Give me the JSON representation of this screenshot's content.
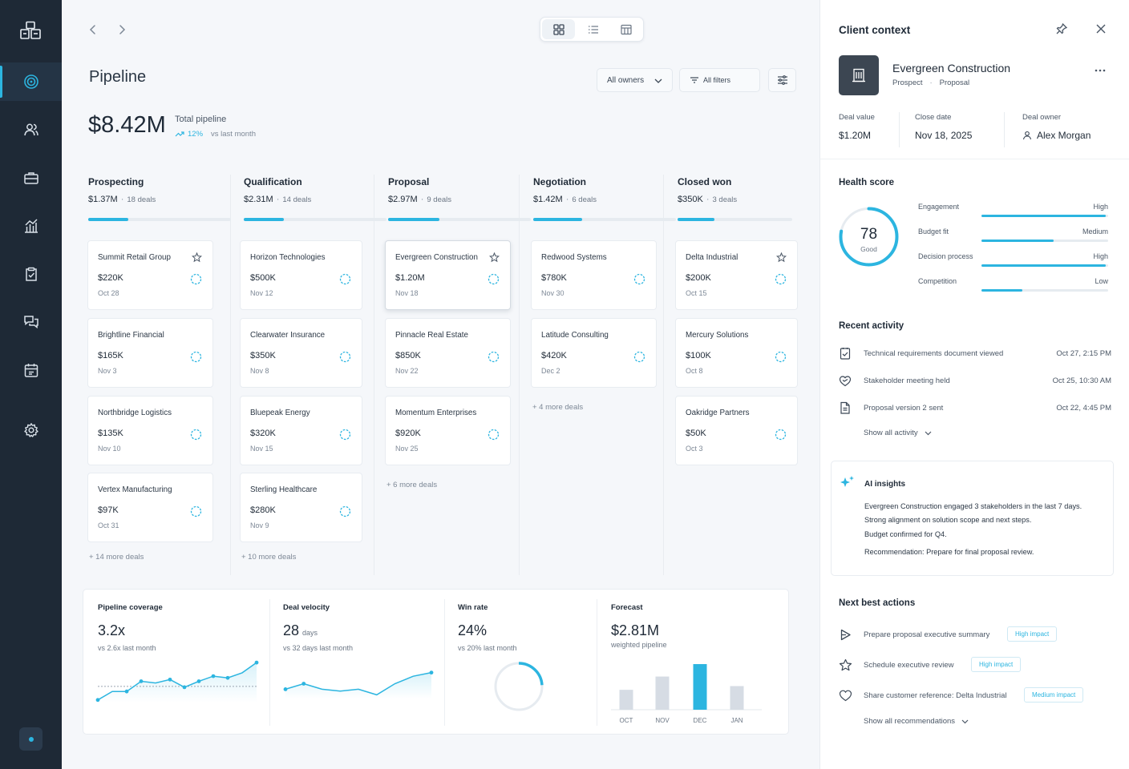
{
  "nav": {
    "items": [
      {
        "name": "sidebar-item-pipeline",
        "icon": "target-icon",
        "active": true
      },
      {
        "name": "sidebar-item-contacts",
        "icon": "users-icon"
      },
      {
        "name": "sidebar-item-deals",
        "icon": "briefcase-icon"
      },
      {
        "name": "sidebar-item-reports",
        "icon": "chart-icon"
      },
      {
        "name": "sidebar-item-tasks",
        "icon": "clipboard-check-icon"
      },
      {
        "name": "sidebar-item-messages",
        "icon": "chat-icon"
      },
      {
        "name": "sidebar-item-calendar",
        "icon": "calendar-icon"
      },
      {
        "name": "sidebar-item-settings",
        "icon": "gear-icon"
      }
    ]
  },
  "page": {
    "title": "Pipeline",
    "owners_filter": "All owners",
    "all_filters": "All filters",
    "total_value": "$8.42M",
    "total_label": "Total pipeline",
    "total_change": "12%",
    "total_change_note": "vs last month",
    "accent": "#2cb5e0"
  },
  "stages": [
    {
      "name": "Prospecting",
      "amount": "$1.37M",
      "count": "18 deals",
      "progress": 0.28,
      "deals": [
        {
          "name": "Summit Retail Group",
          "value": "$220K",
          "date": "Oct 28",
          "starred": true
        },
        {
          "name": "Brightline Financial",
          "value": "$165K",
          "date": "Nov 3"
        },
        {
          "name": "Northbridge Logistics",
          "value": "$135K",
          "date": "Nov 10"
        },
        {
          "name": "Vertex Manufacturing",
          "value": "$97K",
          "date": "Oct 31"
        }
      ],
      "more": "+  14 more deals"
    },
    {
      "name": "Qualification",
      "amount": "$2.31M",
      "count": "14 deals",
      "progress": 0.28,
      "deals": [
        {
          "name": "Horizon Technologies",
          "value": "$500K",
          "date": "Nov 12"
        },
        {
          "name": "Clearwater Insurance",
          "value": "$350K",
          "date": "Nov 8"
        },
        {
          "name": "Bluepeak Energy",
          "value": "$320K",
          "date": "Nov 15"
        },
        {
          "name": "Sterling Healthcare",
          "value": "$280K",
          "date": "Nov 9"
        }
      ],
      "more": "+  10 more deals"
    },
    {
      "name": "Proposal",
      "amount": "$2.97M",
      "count": "9 deals",
      "progress": 0.36,
      "deals": [
        {
          "name": "Evergreen Construction",
          "value": "$1.20M",
          "date": "Nov 18",
          "starred": true,
          "selected": true
        },
        {
          "name": "Pinnacle Real Estate",
          "value": "$850K",
          "date": "Nov 22"
        },
        {
          "name": "Momentum Enterprises",
          "value": "$920K",
          "date": "Nov 25"
        }
      ],
      "more": "+  6 more deals"
    },
    {
      "name": "Negotiation",
      "amount": "$1.42M",
      "count": "6 deals",
      "progress": 0.34,
      "deals": [
        {
          "name": "Redwood Systems",
          "value": "$780K",
          "date": "Nov 30"
        },
        {
          "name": "Latitude Consulting",
          "value": "$420K",
          "date": "Dec 2"
        }
      ],
      "more": "+  4 more deals"
    },
    {
      "name": "Closed won",
      "amount": "$350K",
      "count": "3 deals",
      "progress": 0.32,
      "deals": [
        {
          "name": "Delta Industrial",
          "value": "$200K",
          "date": "Oct 15",
          "starred": true
        },
        {
          "name": "Mercury Solutions",
          "value": "$100K",
          "date": "Oct 8"
        },
        {
          "name": "Oakridge Partners",
          "value": "$50K",
          "date": "Oct 3"
        }
      ],
      "more": ""
    }
  ],
  "metrics": {
    "coverage": {
      "title": "Pipeline coverage",
      "value": "3.2x",
      "sub": "vs 2.6x last month",
      "chart_data": {
        "type": "line",
        "values": [
          1.0,
          2.0,
          2.0,
          3.2,
          3.0,
          3.4,
          2.5,
          3.2,
          3.8,
          3.6,
          4.2,
          5.4
        ],
        "baseline": 2.6
      }
    },
    "velocity": {
      "title": "Deal velocity",
      "value": "28",
      "unit": "days",
      "sub": "vs 32 days last month",
      "chart_data": {
        "type": "area",
        "values": [
          3.0,
          3.6,
          3.0,
          2.8,
          3.0,
          2.4,
          3.6,
          4.4,
          4.8
        ]
      }
    },
    "winrate": {
      "title": "Win rate",
      "value": "24%",
      "sub": "vs 20% last month",
      "chart_data": {
        "type": "pie",
        "value": 0.24
      }
    },
    "forecast": {
      "title": "Forecast",
      "value": "$2.81M",
      "sub": "weighted pipeline",
      "chart_data": {
        "type": "bar",
        "categories": [
          "OCT",
          "NOV",
          "DEC",
          "JAN"
        ],
        "values": [
          0.48,
          0.8,
          1.1,
          0.57
        ],
        "highlight": 2
      }
    }
  },
  "panel": {
    "title": "Client context",
    "client_name": "Evergreen Construction",
    "client_type": "Prospect",
    "client_stage": "Proposal",
    "deal_value_label": "Deal value",
    "deal_value": "$1.20M",
    "close_date_label": "Close date",
    "close_date": "Nov 18, 2025",
    "owner_label": "Deal owner",
    "owner": "Alex Morgan",
    "health": {
      "title": "Health score",
      "score": "78",
      "score_value": 0.78,
      "rating": "Good",
      "metrics": [
        {
          "label": "Engagement",
          "level": "High",
          "value": 0.98
        },
        {
          "label": "Budget fit",
          "level": "Medium",
          "value": 0.57
        },
        {
          "label": "Decision process",
          "level": "High",
          "value": 0.98
        },
        {
          "label": "Competition",
          "level": "Low",
          "value": 0.32
        }
      ]
    },
    "activity": {
      "title": "Recent activity",
      "items": [
        {
          "text": "Technical requirements document viewed",
          "time": "Oct 27, 2:15 PM",
          "icon": "document-check-icon"
        },
        {
          "text": "Stakeholder meeting held",
          "time": "Oct 25, 10:30 AM",
          "icon": "handshake-icon"
        },
        {
          "text": "Proposal version 2 sent",
          "time": "Oct 22, 4:45 PM",
          "icon": "file-icon"
        }
      ],
      "show_all": "Show all activity"
    },
    "ai": {
      "title": "AI insights",
      "lines": [
        "Evergreen Construction engaged 3 stakeholders in the last 7 days.",
        "Strong alignment on solution scope and next steps.",
        "Budget confirmed for Q4.",
        "Recommendation: Prepare for final proposal review."
      ]
    },
    "actions": {
      "title": "Next best actions",
      "items": [
        {
          "text": "Prepare proposal executive summary",
          "badge": "High impact",
          "icon": "play-icon"
        },
        {
          "text": "Schedule executive review",
          "badge": "High impact",
          "icon": "star-icon"
        },
        {
          "text": "Share customer reference: Delta Industrial",
          "badge": "Medium impact",
          "icon": "heart-icon"
        }
      ],
      "show_all": "Show all recommendations"
    }
  }
}
